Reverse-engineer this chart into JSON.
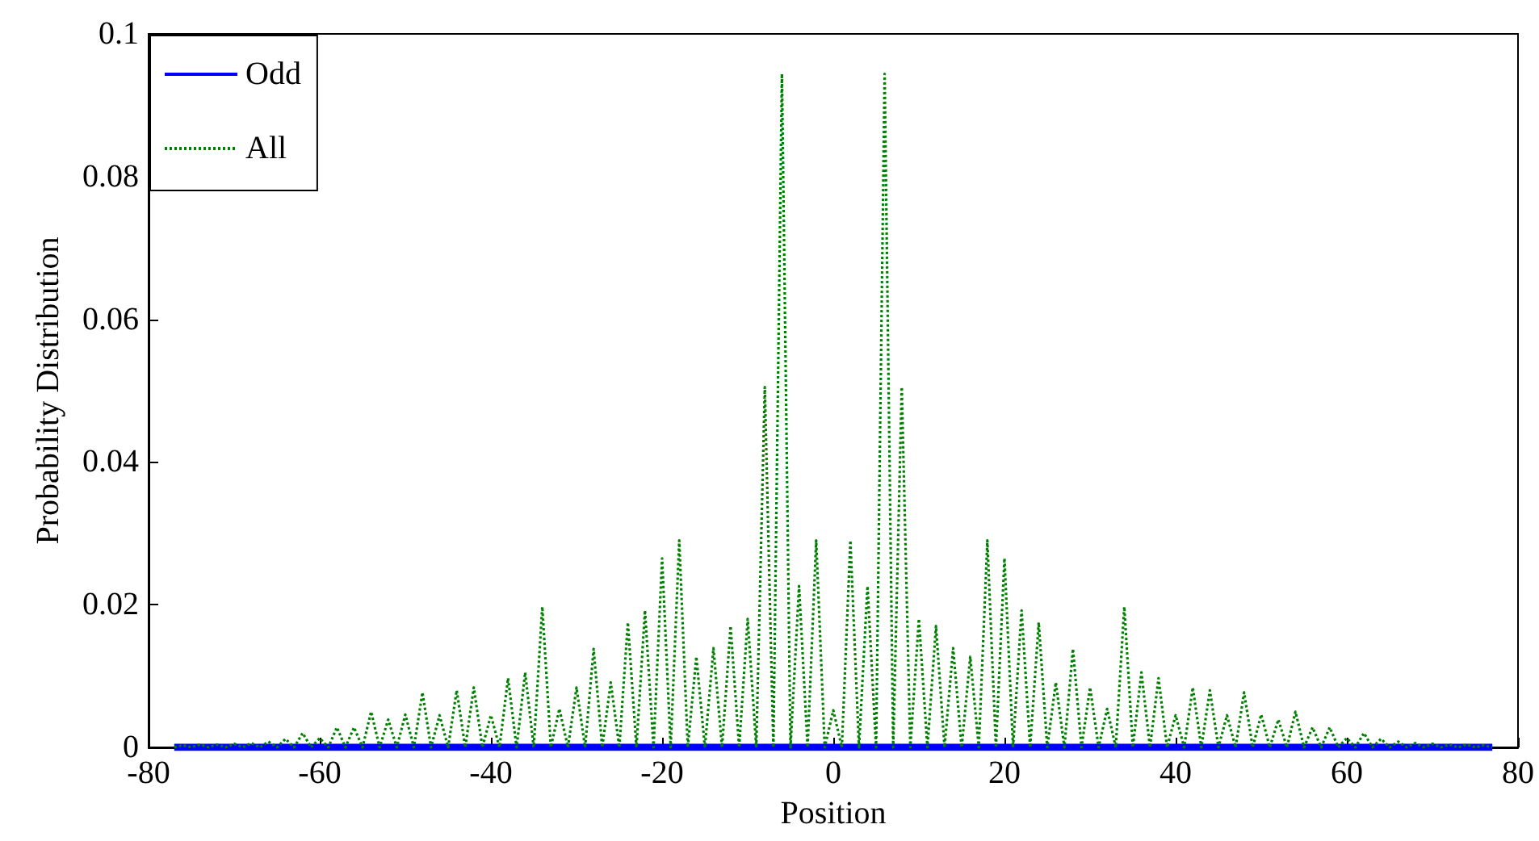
{
  "chart_data": {
    "type": "line",
    "xlabel": "Position",
    "ylabel": "Probability Distribution",
    "xlim": [
      -80,
      80
    ],
    "xticks": [
      -80,
      -60,
      -40,
      -20,
      0,
      20,
      40,
      60,
      80
    ],
    "ylim": [
      0,
      0.1
    ],
    "yticks": [
      0,
      0.02,
      0.04,
      0.06,
      0.08,
      0.1
    ],
    "grid": false,
    "legend": "top left",
    "marker": "none",
    "series": [
      {
        "name": "All",
        "color": "#008000",
        "line_style": "dotted",
        "x": [
          -77,
          -76,
          -75,
          -74,
          -73,
          -72,
          -71,
          -70,
          -69,
          -68,
          -67,
          -66,
          -65,
          -64,
          -63,
          -62,
          -61,
          -60,
          -59,
          -58,
          -57,
          -56,
          -55,
          -54,
          -53,
          -52,
          -51,
          -50,
          -49,
          -48,
          -47,
          -46,
          -45,
          -44,
          -43,
          -42,
          -41,
          -40,
          -39,
          -38,
          -37,
          -36,
          -35,
          -34,
          -33,
          -32,
          -31,
          -30,
          -29,
          -28,
          -27,
          -26,
          -25,
          -24,
          -23,
          -22,
          -21,
          -20,
          -19,
          -18,
          -17,
          -16,
          -15,
          -14,
          -13,
          -12,
          -11,
          -10,
          -9,
          -8,
          -7,
          -6,
          -5,
          -4,
          -3,
          -2,
          -1,
          0,
          1,
          2,
          3,
          4,
          5,
          6,
          7,
          8,
          9,
          10,
          11,
          12,
          13,
          14,
          15,
          16,
          17,
          18,
          19,
          20,
          21,
          22,
          23,
          24,
          25,
          26,
          27,
          28,
          29,
          30,
          31,
          32,
          33,
          34,
          35,
          36,
          37,
          38,
          39,
          40,
          41,
          42,
          43,
          44,
          45,
          46,
          47,
          48,
          49,
          50,
          51,
          52,
          53,
          54,
          55,
          56,
          57,
          58,
          59,
          60,
          61,
          62,
          63,
          64,
          65,
          66,
          67,
          68,
          69,
          70,
          71,
          72,
          73,
          74,
          75,
          76,
          77
        ],
        "values": [
          0,
          0.0003,
          0,
          0.0004,
          0,
          0.0004,
          0,
          0.0005,
          0,
          0.0006,
          0,
          0.0008,
          0,
          0.0012,
          0,
          0.002,
          0,
          0.0013,
          0,
          0.0028,
          0,
          0.0028,
          0,
          0.005,
          0,
          0.0039,
          0,
          0.0046,
          0,
          0.0077,
          0,
          0.0045,
          0,
          0.008,
          0,
          0.0084,
          0,
          0.0045,
          0,
          0.0097,
          0,
          0.0105,
          0,
          0.0197,
          0,
          0.0054,
          0,
          0.0084,
          0,
          0.0138,
          0,
          0.0091,
          0,
          0.0175,
          0,
          0.0192,
          0,
          0.0265,
          0,
          0.029,
          0,
          0.0127,
          0,
          0.0139,
          0,
          0.017,
          0,
          0.018,
          0,
          0.0505,
          0,
          0.0944,
          0,
          0.0226,
          0,
          0.029,
          0,
          0.0052,
          0,
          0.029,
          0,
          0.0226,
          0,
          0.0944,
          0,
          0.0505,
          0,
          0.018,
          0,
          0.017,
          0,
          0.0139,
          0,
          0.0127,
          0,
          0.029,
          0,
          0.0265,
          0,
          0.0192,
          0,
          0.0175,
          0,
          0.0091,
          0,
          0.0138,
          0,
          0.0084,
          0,
          0.0054,
          0,
          0.0197,
          0,
          0.0105,
          0,
          0.0097,
          0,
          0.0045,
          0,
          0.0084,
          0,
          0.008,
          0,
          0.0045,
          0,
          0.0077,
          0,
          0.0046,
          0,
          0.0039,
          0,
          0.005,
          0,
          0.0028,
          0,
          0.0028,
          0,
          0.0013,
          0,
          0.002,
          0,
          0.0012,
          0,
          0.0008,
          0,
          0.0006,
          0,
          0.0005,
          0,
          0.0004,
          0,
          0.0004,
          0,
          0.0003,
          0
        ]
      },
      {
        "name": "Odd",
        "color": "#0000ff",
        "line_style": "solid",
        "x": [
          -77,
          77
        ],
        "values": [
          0,
          0
        ]
      }
    ]
  }
}
